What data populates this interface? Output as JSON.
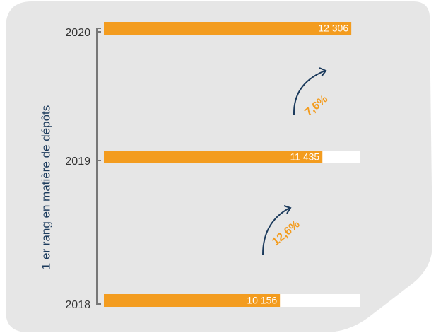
{
  "chart_data": {
    "type": "hbar",
    "y_label": "1 er rang en matière de dépôts",
    "categories": [
      "2020",
      "2019",
      "2018"
    ],
    "values": [
      12306,
      11435,
      10156
    ],
    "value_labels": [
      "12 306",
      "11 435",
      "10 156"
    ],
    "color": "#f39c1f",
    "xlim": [
      4850,
      12580
    ],
    "annotations": [
      "7,6%",
      "12,6%"
    ]
  }
}
